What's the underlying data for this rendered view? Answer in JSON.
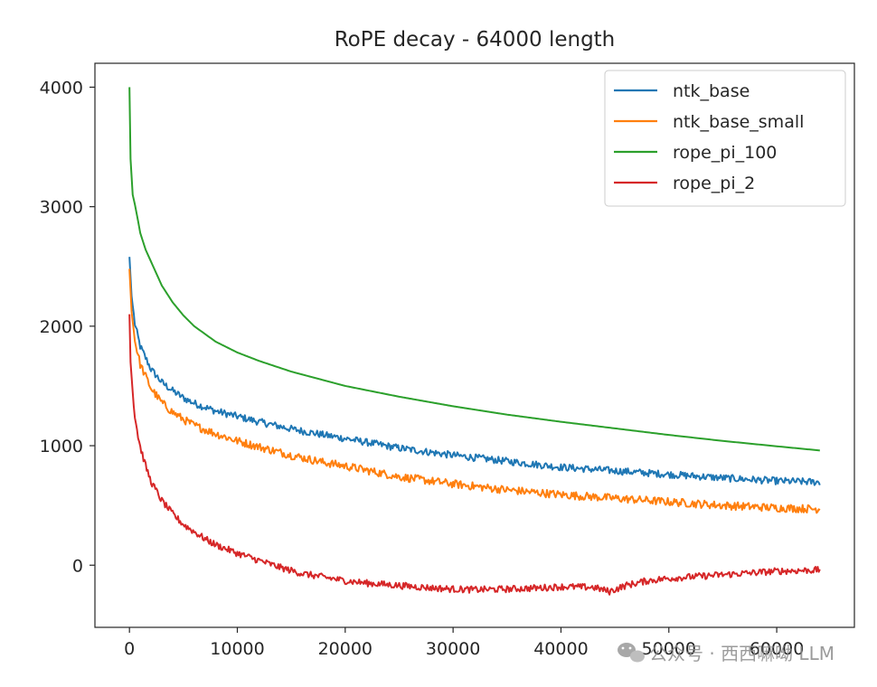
{
  "chart_data": {
    "type": "line",
    "title": "RoPE decay - 64000 length",
    "xlabel": "",
    "ylabel": "",
    "xlim": [
      -3200,
      67200
    ],
    "ylim": [
      -520,
      4200
    ],
    "xticks": [
      0,
      10000,
      20000,
      30000,
      40000,
      50000,
      60000
    ],
    "yticks": [
      0,
      1000,
      2000,
      3000,
      4000
    ],
    "grid": false,
    "legend_position": "top-right",
    "series": [
      {
        "name": "ntk_base",
        "color": "#1f77b4",
        "noise": 30,
        "x": [
          0,
          200,
          500,
          1000,
          2000,
          3000,
          4000,
          5000,
          6000,
          8000,
          10000,
          12000,
          15000,
          18000,
          20000,
          25000,
          30000,
          35000,
          40000,
          45000,
          50000,
          55000,
          60000,
          64000
        ],
        "values": [
          2580,
          2250,
          2020,
          1830,
          1640,
          1530,
          1460,
          1400,
          1355,
          1290,
          1245,
          1200,
          1140,
          1090,
          1060,
          980,
          920,
          870,
          820,
          790,
          760,
          730,
          705,
          695
        ]
      },
      {
        "name": "ntk_base_small",
        "color": "#ff7f0e",
        "noise": 34,
        "x": [
          0,
          200,
          500,
          1000,
          2000,
          3000,
          4000,
          5000,
          6000,
          8000,
          10000,
          12000,
          15000,
          18000,
          20000,
          25000,
          30000,
          35000,
          40000,
          45000,
          50000,
          55000,
          60000,
          64000
        ],
        "values": [
          2480,
          2120,
          1880,
          1680,
          1480,
          1360,
          1280,
          1220,
          1170,
          1100,
          1040,
          990,
          920,
          860,
          830,
          740,
          680,
          630,
          590,
          560,
          530,
          500,
          480,
          470
        ]
      },
      {
        "name": "rope_pi_100",
        "color": "#2ca02c",
        "noise": 0,
        "x": [
          0,
          100,
          300,
          500,
          800,
          1000,
          1500,
          2000,
          3000,
          4000,
          5000,
          6000,
          8000,
          10000,
          12000,
          15000,
          20000,
          25000,
          30000,
          35000,
          40000,
          45000,
          50000,
          55000,
          60000,
          64000
        ],
        "values": [
          4000,
          3400,
          3100,
          3020,
          2880,
          2780,
          2640,
          2540,
          2340,
          2200,
          2090,
          2000,
          1870,
          1780,
          1710,
          1620,
          1500,
          1410,
          1330,
          1260,
          1200,
          1145,
          1090,
          1040,
          995,
          960
        ]
      },
      {
        "name": "rope_pi_2",
        "color": "#d62728",
        "noise": 28,
        "x": [
          0,
          100,
          300,
          500,
          800,
          1000,
          1500,
          2000,
          3000,
          4000,
          5000,
          6000,
          7000,
          8000,
          10000,
          12000,
          14000,
          16000,
          18000,
          20000,
          22000,
          25000,
          28000,
          30000,
          32000,
          35000,
          38000,
          40000,
          43000,
          44500,
          46000,
          48000,
          50000,
          55000,
          60000,
          64000
        ],
        "values": [
          2100,
          1700,
          1450,
          1250,
          1080,
          990,
          830,
          700,
          540,
          430,
          340,
          280,
          220,
          170,
          100,
          40,
          -20,
          -70,
          -100,
          -130,
          -150,
          -170,
          -190,
          -200,
          -205,
          -200,
          -190,
          -180,
          -185,
          -220,
          -170,
          -130,
          -110,
          -80,
          -50,
          -40
        ]
      }
    ]
  },
  "watermark": {
    "text": "公众号 · 西西嘛呦 LLM",
    "icon": "wechat-icon"
  }
}
